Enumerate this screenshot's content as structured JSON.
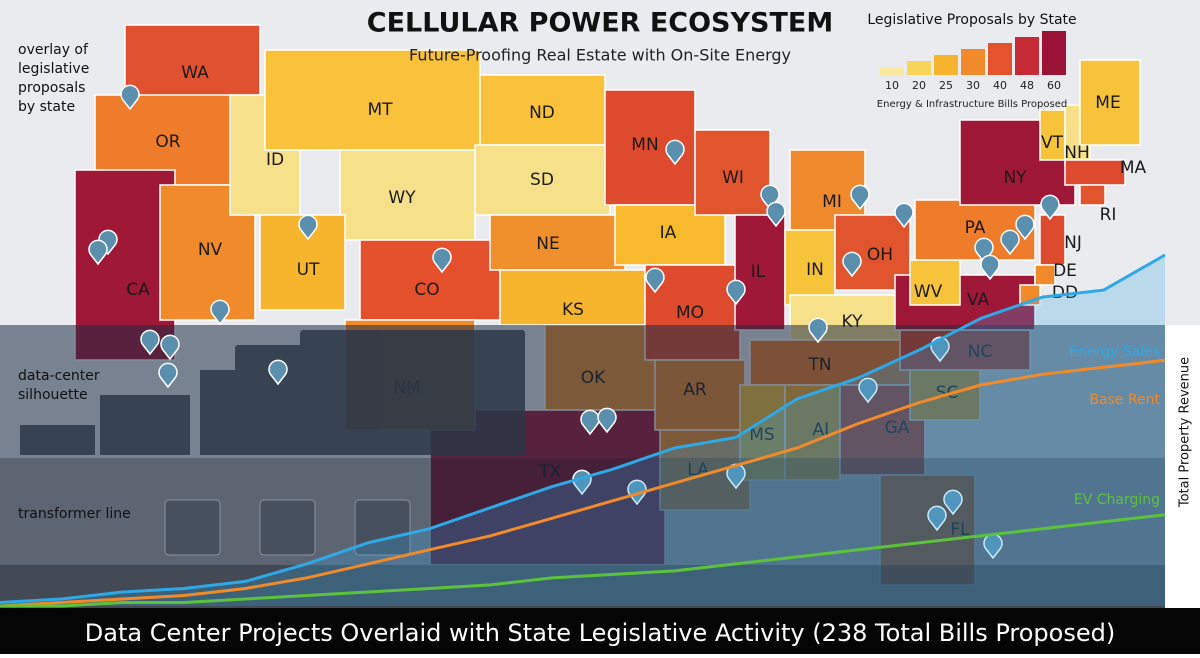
{
  "title": "CELLULAR POWER ECOSYSTEM",
  "subtitle": "Future-Proofing Real Estate with On-Site Energy",
  "legend": {
    "title": "Legislative Proposals by State",
    "ticks": [
      10,
      20,
      25,
      30,
      40,
      48,
      60
    ],
    "colors": [
      "#f9eaa0",
      "#f8d558",
      "#f7b42f",
      "#f08a2a",
      "#e4532c",
      "#c52a36",
      "#9b1237"
    ],
    "caption": "Energy & Infrastructure Bills Proposed"
  },
  "annotations": [
    "overlay of legislative proposals by state",
    "data-center silhouette",
    "transformer line"
  ],
  "footer": "Data Center Projects Overlaid with State Legislative Activity (238 Total Bills Proposed)",
  "states": [
    {
      "name": "WA",
      "color": "#e0522f"
    },
    {
      "name": "OR",
      "color": "#ee7c2a"
    },
    {
      "name": "CA",
      "color": "#a01838"
    },
    {
      "name": "NV",
      "color": "#f08a2a"
    },
    {
      "name": "ID",
      "color": "#f6e08a"
    },
    {
      "name": "MT",
      "color": "#f9c23a"
    },
    {
      "name": "WY",
      "color": "#f6e08a"
    },
    {
      "name": "UT",
      "color": "#f7b52e"
    },
    {
      "name": "CO",
      "color": "#e4502c"
    },
    {
      "name": "ND",
      "color": "#f9c23a"
    },
    {
      "name": "SD",
      "color": "#f6e08a"
    },
    {
      "name": "NE",
      "color": "#f0902d"
    },
    {
      "name": "KS",
      "color": "#f7b52e"
    },
    {
      "name": "OK",
      "color": "#f0902d"
    },
    {
      "name": "TX",
      "color": "#a01838"
    },
    {
      "name": "NM",
      "color": "#f08a2a"
    },
    {
      "name": "MN",
      "color": "#dd4a2e"
    },
    {
      "name": "IA",
      "color": "#f8b92e"
    },
    {
      "name": "MO",
      "color": "#dd4a2e"
    },
    {
      "name": "AR",
      "color": "#ee8a2d"
    },
    {
      "name": "LA",
      "color": "#f0902d"
    },
    {
      "name": "WI",
      "color": "#e0552e"
    },
    {
      "name": "IL",
      "color": "#a01838"
    },
    {
      "name": "MI",
      "color": "#f08a2d"
    },
    {
      "name": "IN",
      "color": "#f7c33a"
    },
    {
      "name": "OH",
      "color": "#e0552e"
    },
    {
      "name": "KY",
      "color": "#f6e08a"
    },
    {
      "name": "TN",
      "color": "#ef7e2c"
    },
    {
      "name": "MS",
      "color": "#f7c33a"
    },
    {
      "name": "AL",
      "color": "#f5b22e"
    },
    {
      "name": "GA",
      "color": "#dd4a2e"
    },
    {
      "name": "FL",
      "color": "#ee7c2a"
    },
    {
      "name": "SC",
      "color": "#f5b22e"
    },
    {
      "name": "NC",
      "color": "#df4a2f"
    },
    {
      "name": "VA",
      "color": "#a01838"
    },
    {
      "name": "WV",
      "color": "#f7c33a"
    },
    {
      "name": "PA",
      "color": "#ee7c2a"
    },
    {
      "name": "NY",
      "color": "#a01838"
    },
    {
      "name": "VT",
      "color": "#f7c33a"
    },
    {
      "name": "NH",
      "color": "#f6e08a"
    },
    {
      "name": "ME",
      "color": "#f7c33a"
    },
    {
      "name": "MA",
      "color": "#dd4a2e"
    },
    {
      "name": "RI",
      "color": "#e0552e"
    },
    {
      "name": "NJ",
      "color": "#dd4a2e"
    },
    {
      "name": "DE",
      "color": "#f08a2a"
    },
    {
      "name": "DD",
      "color": "#f08a2a"
    }
  ],
  "chart_data": {
    "type": "line",
    "y_label": "Total Property Revenue",
    "ylim": [
      0,
      100
    ],
    "series": [
      {
        "name": "Energy Sales",
        "color": "#2fa8e6",
        "values": [
          1,
          2,
          4,
          5,
          7,
          12,
          18,
          22,
          28,
          34,
          39,
          45,
          48,
          59,
          65,
          73,
          82,
          88,
          90,
          100
        ]
      },
      {
        "name": "Base Rent",
        "color": "#f08a2a",
        "values": [
          0,
          1,
          2,
          3,
          5,
          8,
          12,
          16,
          20,
          25,
          30,
          35,
          40,
          45,
          52,
          58,
          63,
          66,
          68,
          70
        ]
      },
      {
        "name": "EV Charging",
        "color": "#5cc23c",
        "values": [
          0,
          0,
          1,
          1,
          2,
          3,
          4,
          5,
          6,
          8,
          9,
          10,
          12,
          14,
          16,
          18,
          20,
          22,
          24,
          26
        ]
      }
    ]
  }
}
